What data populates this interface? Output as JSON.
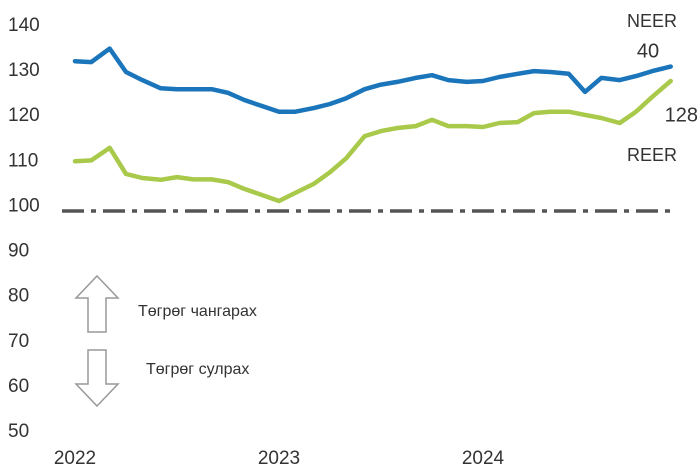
{
  "chart_data": {
    "type": "line",
    "x": [
      2022,
      2022.08,
      2022.17,
      2022.25,
      2022.33,
      2022.42,
      2022.5,
      2022.58,
      2022.67,
      2022.75,
      2022.83,
      2022.92,
      2023,
      2023.08,
      2023.17,
      2023.25,
      2023.33,
      2023.42,
      2023.5,
      2023.58,
      2023.67,
      2023.75,
      2023.83,
      2023.92,
      2024,
      2024.08,
      2024.17,
      2024.25,
      2024.33,
      2024.42,
      2024.5,
      2024.58,
      2024.67,
      2024.75,
      2024.83,
      2024.92
    ],
    "series": [
      {
        "name": "NEER",
        "color": "#1b75bb",
        "values": [
          132.2,
          132,
          135,
          129.8,
          128,
          126.2,
          126,
          126,
          126,
          125.2,
          123.6,
          122.2,
          121,
          121,
          121.8,
          122.7,
          124,
          126,
          127,
          127.6,
          128.5,
          129.1,
          128,
          127.6,
          127.8,
          128.7,
          129.4,
          130,
          129.8,
          129.4,
          125.4,
          128.5,
          128,
          128.9,
          130,
          131
        ]
      },
      {
        "name": "REER",
        "color": "#a9c94a",
        "values": [
          110,
          110.2,
          113,
          107.2,
          106.3,
          105.9,
          106.5,
          106,
          106,
          105.4,
          103.9,
          102.5,
          101.2,
          103,
          105,
          107.6,
          110.7,
          115.6,
          116.7,
          117.4,
          117.8,
          119.2,
          117.8,
          117.8,
          117.6,
          118.5,
          118.7,
          120.7,
          121,
          121,
          120.3,
          119.6,
          118.5,
          121,
          124.3,
          127.8
        ]
      }
    ],
    "xlim": [
      2021.9,
      2025
    ],
    "xticks": [
      2022,
      2023,
      2024
    ],
    "ylim": [
      50,
      140
    ],
    "yticks": [
      50,
      60,
      70,
      80,
      90,
      100,
      110,
      120,
      130,
      140
    ],
    "reference_line": 99,
    "annotations": [
      "40",
      "128",
      "Төгрөг чангарах",
      "Төгрөг сулрах"
    ]
  }
}
